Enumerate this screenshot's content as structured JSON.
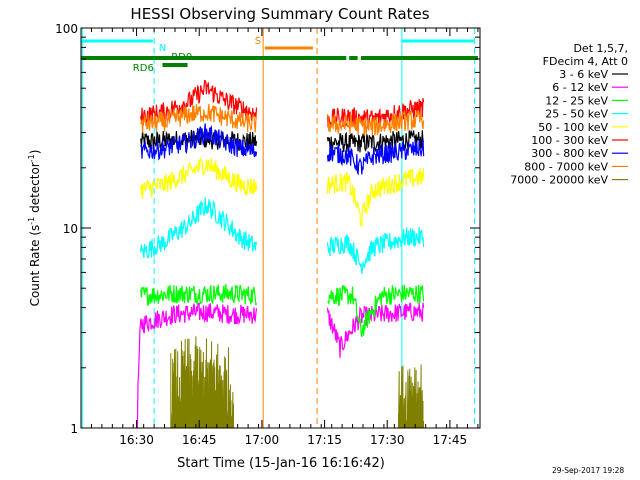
{
  "chart_data": {
    "type": "line",
    "title": "HESSI Observing Summary Count Rates",
    "xlabel": "Start Time (15-Jan-16 16:16:42)",
    "ylabel_main": "Count Rate (s",
    "ylabel_sup1": "-1",
    "ylabel_mid": " detector",
    "ylabel_sup2": "-1",
    "ylabel_end": ")",
    "y_scale": "log",
    "ylim": [
      1,
      100
    ],
    "x_start": "16:16:42",
    "xlim_minutes": [
      0,
      95.5
    ],
    "x_ticks": [
      {
        "label": "16:30",
        "minutes": 13.3
      },
      {
        "label": "16:45",
        "minutes": 28.3
      },
      {
        "label": "17:00",
        "minutes": 43.3
      },
      {
        "label": "17:15",
        "minutes": 58.3
      },
      {
        "label": "17:30",
        "minutes": 73.3
      },
      {
        "label": "17:45",
        "minutes": 88.3
      }
    ],
    "y_ticks": [
      {
        "label": "100",
        "value": 100
      },
      {
        "label": "10",
        "value": 10
      },
      {
        "label": "1",
        "value": 1
      }
    ],
    "legend_header": [
      "Det 1,5,7,",
      "FDecim 4, Att 0"
    ],
    "legend_placement": "right",
    "series": [
      {
        "name": "3 - 6 keV",
        "color": "#000000",
        "segments": [
          {
            "x": [
              14.3,
              22,
              28,
              34,
              40,
              42
            ],
            "y": [
              27,
              27.5,
              28,
              27.5,
              27,
              27
            ]
          },
          {
            "x": [
              59,
              65,
              72,
              78,
              82
            ],
            "y": [
              27,
              26.5,
              27,
              27.5,
              27.5
            ]
          }
        ]
      },
      {
        "name": "6 - 12 keV",
        "color": "#ff00ff",
        "segments": [
          {
            "x": [
              13.5,
              14.3,
              22,
              30,
              36,
              42
            ],
            "y": [
              1.1,
              3.3,
              3.7,
              3.8,
              3.7,
              3.7
            ]
          },
          {
            "x": [
              59,
              62,
              67,
              72,
              78,
              82
            ],
            "y": [
              3.7,
              2.5,
              3.6,
              3.7,
              3.8,
              3.8
            ]
          }
        ]
      },
      {
        "name": "12 - 25 keV",
        "color": "#00ff00",
        "segments": [
          {
            "x": [
              14.3,
              22,
              30,
              36,
              42
            ],
            "y": [
              4.6,
              4.7,
              4.7,
              4.7,
              4.6
            ]
          },
          {
            "x": [
              59,
              65,
              67,
              72,
              78,
              82
            ],
            "y": [
              4.6,
              4.6,
              3.0,
              4.6,
              4.7,
              4.7
            ]
          }
        ]
      },
      {
        "name": "25 - 50 keV",
        "color": "#00ffff",
        "segments": [
          {
            "x": [
              14.3,
              20,
              26,
              30,
              34,
              38,
              42
            ],
            "y": [
              7.5,
              8.5,
              10.5,
              13,
              11,
              9,
              8
            ]
          },
          {
            "x": [
              59,
              64,
              67,
              70,
              74,
              78,
              82
            ],
            "y": [
              8,
              8.5,
              6.5,
              8,
              8.5,
              9,
              9
            ]
          }
        ]
      },
      {
        "name": "50 - 100 keV",
        "color": "#ffff00",
        "segments": [
          {
            "x": [
              14.3,
              20,
              26,
              30,
              34,
              38,
              42
            ],
            "y": [
              15.5,
              16.5,
              19,
              21,
              18.5,
              16.5,
              16
            ]
          },
          {
            "x": [
              59,
              64,
              67,
              70,
              74,
              78,
              82
            ],
            "y": [
              16.5,
              17,
              11,
              15.5,
              16.5,
              17.5,
              18
            ]
          }
        ]
      },
      {
        "name": "100 - 300 keV",
        "color": "#ff0000",
        "segments": [
          {
            "x": [
              14.3,
              20,
              26,
              30,
              34,
              38,
              42
            ],
            "y": [
              36,
              38,
              43,
              50,
              44,
              40,
              37
            ]
          },
          {
            "x": [
              59,
              64,
              70,
              76,
              82
            ],
            "y": [
              35,
              36,
              35,
              38,
              40
            ]
          }
        ]
      },
      {
        "name": "300 - 800 keV",
        "color": "#0000ff",
        "segments": [
          {
            "x": [
              14.3,
              20,
              26,
              30,
              34,
              38,
              42
            ],
            "y": [
              24,
              25,
              27,
              30,
              27,
              25,
              24
            ]
          },
          {
            "x": [
              59,
              64,
              67,
              70,
              76,
              82
            ],
            "y": [
              24,
              23,
              20,
              23,
              24,
              25
            ]
          }
        ]
      },
      {
        "name": "800 - 7000 keV",
        "color": "#ff8000",
        "segments": [
          {
            "x": [
              14.3,
              20,
              26,
              30,
              34,
              38,
              42
            ],
            "y": [
              33,
              34,
              37,
              38,
              36,
              34,
              33
            ]
          },
          {
            "x": [
              59,
              64,
              70,
              76,
              82
            ],
            "y": [
              33,
              33,
              32,
              34,
              35
            ]
          }
        ]
      },
      {
        "name": "7000 - 20000 keV",
        "color": "#808000",
        "segments": [
          {
            "x": [
              21.5,
              25,
              29,
              33,
              36.5
            ],
            "y": [
              1.6,
              1.9,
              1.9,
              1.9,
              1.6
            ]
          },
          {
            "x": [
              76,
              79,
              82
            ],
            "y": [
              1.3,
              1.7,
              1.5
            ]
          }
        ]
      }
    ],
    "vlines": [
      {
        "minutes": 0.3,
        "color": "#00ffff",
        "style": "solid"
      },
      {
        "minutes": 17.5,
        "color": "#00ffff",
        "style": "dashed"
      },
      {
        "minutes": 43.6,
        "color": "#ff8000",
        "style": "solid"
      },
      {
        "minutes": 56.5,
        "color": "#ff8000",
        "style": "dashed"
      },
      {
        "minutes": 76.8,
        "color": "#00ffff",
        "style": "solid"
      },
      {
        "minutes": 94.2,
        "color": "#00ffff",
        "style": "dashed"
      }
    ],
    "bars": [
      {
        "label": "N",
        "color": "#00ffff",
        "segments": [
          [
            0,
            17.2
          ],
          [
            76.8,
            94
          ]
        ]
      },
      {
        "label": "S",
        "color": "#ff8000",
        "segments": [
          [
            44,
            55.5
          ]
        ]
      },
      {
        "label": "",
        "color": "#008000",
        "segments": [
          [
            0,
            63.5
          ],
          [
            64.2,
            66.2
          ],
          [
            67,
            95
          ]
        ]
      },
      {
        "label": "RD6",
        "color": "#008000",
        "segments": [
          [
            19.5,
            25.5
          ]
        ]
      }
    ],
    "bar_labels": [
      {
        "text": "N",
        "color": "#00ffff",
        "minutes": 18.6,
        "level": 1
      },
      {
        "text": "S",
        "color": "#ff8000",
        "minutes": 41.6,
        "level": 0
      },
      {
        "text": "RD0",
        "color": "#008000",
        "minutes": 21.6,
        "level": 2
      },
      {
        "text": "RD6",
        "color": "#008000",
        "minutes": 12.4,
        "level": 3
      }
    ],
    "timestamp": "29-Sep-2017 19:28"
  }
}
